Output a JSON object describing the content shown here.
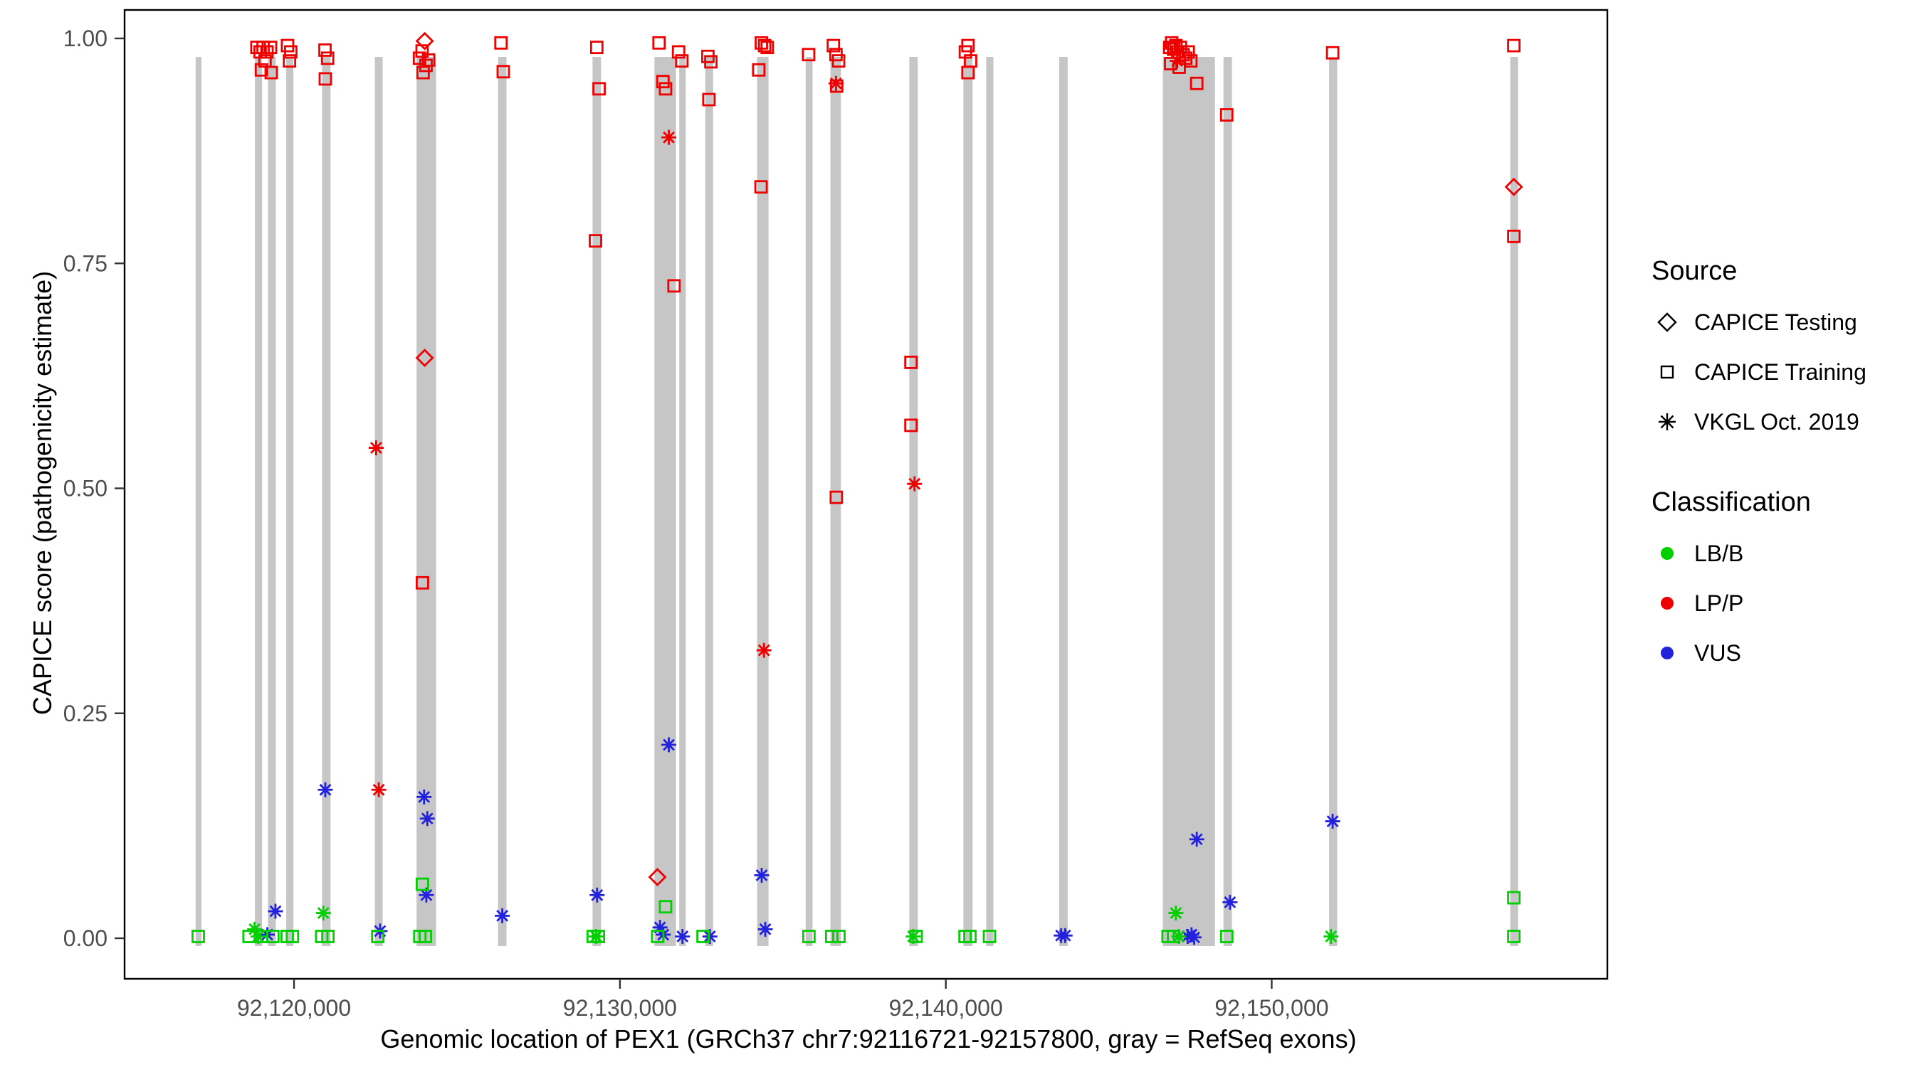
{
  "chart_data": {
    "type": "scatter",
    "title": "",
    "xlabel": "Genomic location of PEX1 (GRCh37 chr7:92116721-92157800, gray = RefSeq exons)",
    "ylabel": "CAPICE score (pathogenicity estimate)",
    "xlim": [
      92114800,
      92160300
    ],
    "ylim": [
      0,
      1
    ],
    "grid": false,
    "legend_position": "right",
    "x_ticks": [
      {
        "value": 92120000,
        "label": "92,120,000"
      },
      {
        "value": 92130000,
        "label": "92,130,000"
      },
      {
        "value": 92140000,
        "label": "92,140,000"
      },
      {
        "value": 92150000,
        "label": "92,150,000"
      }
    ],
    "y_ticks": [
      {
        "value": 0.0,
        "label": "0.00"
      },
      {
        "value": 0.25,
        "label": "0.25"
      },
      {
        "value": 0.5,
        "label": "0.50"
      },
      {
        "value": 0.75,
        "label": "0.75"
      },
      {
        "value": 1.0,
        "label": "1.00"
      }
    ],
    "exon_color": "#c6c6c6",
    "exons": [
      [
        92116980,
        92117160
      ],
      [
        92118800,
        92119020
      ],
      [
        92119200,
        92119440
      ],
      [
        92119760,
        92119980
      ],
      [
        92120860,
        92121120
      ],
      [
        92122480,
        92122720
      ],
      [
        92123760,
        92124360
      ],
      [
        92126260,
        92126520
      ],
      [
        92129160,
        92129420
      ],
      [
        92131060,
        92131720
      ],
      [
        92131820,
        92132020
      ],
      [
        92132620,
        92132860
      ],
      [
        92134210,
        92134560
      ],
      [
        92135700,
        92135910
      ],
      [
        92136460,
        92136780
      ],
      [
        92138880,
        92139140
      ],
      [
        92140540,
        92140820
      ],
      [
        92141240,
        92141460
      ],
      [
        92143480,
        92143740
      ],
      [
        92146660,
        92148260
      ],
      [
        92148520,
        92148780
      ],
      [
        92151760,
        92152010
      ],
      [
        92157320,
        92157560
      ]
    ],
    "shape_codes": {
      "d": "CAPICE Testing",
      "s": "CAPICE Training",
      "a": "VKGL Oct. 2019"
    },
    "class_codes": {
      "g": "LB/B",
      "r": "LP/P",
      "b": "VUS"
    },
    "classification_colors": {
      "LB/B": "#00d000",
      "LP/P": "#ee0000",
      "VUS": "#2222dd"
    },
    "points": [
      [
        92118860,
        0.99,
        "s",
        "r"
      ],
      [
        92118960,
        0.985,
        "s",
        "r"
      ],
      [
        92119050,
        0.99,
        "s",
        "r"
      ],
      [
        92119110,
        0.975,
        "s",
        "r"
      ],
      [
        92119170,
        0.985,
        "s",
        "r"
      ],
      [
        92119280,
        0.99,
        "s",
        "r"
      ],
      [
        92119000,
        0.965,
        "s",
        "r"
      ],
      [
        92119300,
        0.962,
        "s",
        "r"
      ],
      [
        92119800,
        0.992,
        "s",
        "r"
      ],
      [
        92119900,
        0.985,
        "s",
        "r"
      ],
      [
        92119860,
        0.975,
        "s",
        "r"
      ],
      [
        92120950,
        0.987,
        "s",
        "r"
      ],
      [
        92121030,
        0.978,
        "s",
        "r"
      ],
      [
        92120960,
        0.955,
        "s",
        "r"
      ],
      [
        92122520,
        0.545,
        "a",
        "r"
      ],
      [
        92122600,
        0.165,
        "a",
        "r"
      ],
      [
        92124010,
        0.997,
        "d",
        "r"
      ],
      [
        92123850,
        0.978,
        "s",
        "r"
      ],
      [
        92123930,
        0.986,
        "s",
        "r"
      ],
      [
        92124050,
        0.97,
        "s",
        "r"
      ],
      [
        92124130,
        0.976,
        "s",
        "r"
      ],
      [
        92123960,
        0.962,
        "s",
        "r"
      ],
      [
        92124010,
        0.645,
        "d",
        "r"
      ],
      [
        92123940,
        0.395,
        "s",
        "r"
      ],
      [
        92126350,
        0.995,
        "s",
        "r"
      ],
      [
        92126420,
        0.963,
        "s",
        "r"
      ],
      [
        92129290,
        0.99,
        "s",
        "r"
      ],
      [
        92129360,
        0.944,
        "s",
        "r"
      ],
      [
        92129250,
        0.775,
        "s",
        "r"
      ],
      [
        92131200,
        0.995,
        "s",
        "r"
      ],
      [
        92131320,
        0.952,
        "s",
        "r"
      ],
      [
        92131400,
        0.944,
        "s",
        "r"
      ],
      [
        92131500,
        0.89,
        "a",
        "r"
      ],
      [
        92131660,
        0.725,
        "s",
        "r"
      ],
      [
        92131150,
        0.068,
        "d",
        "r"
      ],
      [
        92131800,
        0.985,
        "s",
        "r"
      ],
      [
        92131900,
        0.975,
        "s",
        "r"
      ],
      [
        92132700,
        0.98,
        "s",
        "r"
      ],
      [
        92132790,
        0.974,
        "s",
        "r"
      ],
      [
        92132730,
        0.932,
        "s",
        "r"
      ],
      [
        92134260,
        0.965,
        "s",
        "r"
      ],
      [
        92134340,
        0.995,
        "s",
        "r"
      ],
      [
        92134440,
        0.992,
        "s",
        "r"
      ],
      [
        92134520,
        0.99,
        "s",
        "r"
      ],
      [
        92134330,
        0.835,
        "s",
        "r"
      ],
      [
        92134420,
        0.32,
        "a",
        "r"
      ],
      [
        92135790,
        0.982,
        "s",
        "r"
      ],
      [
        92136550,
        0.992,
        "s",
        "r"
      ],
      [
        92136630,
        0.982,
        "s",
        "r"
      ],
      [
        92136710,
        0.975,
        "s",
        "r"
      ],
      [
        92136630,
        0.95,
        "a",
        "r"
      ],
      [
        92136650,
        0.947,
        "s",
        "r"
      ],
      [
        92136640,
        0.49,
        "s",
        "r"
      ],
      [
        92138930,
        0.64,
        "s",
        "r"
      ],
      [
        92138930,
        0.57,
        "s",
        "r"
      ],
      [
        92139040,
        0.505,
        "a",
        "r"
      ],
      [
        92140600,
        0.985,
        "s",
        "r"
      ],
      [
        92140680,
        0.992,
        "s",
        "r"
      ],
      [
        92140760,
        0.975,
        "s",
        "r"
      ],
      [
        92140680,
        0.962,
        "s",
        "r"
      ],
      [
        92146870,
        0.99,
        "s",
        "r"
      ],
      [
        92146930,
        0.995,
        "s",
        "r"
      ],
      [
        92146990,
        0.988,
        "s",
        "r"
      ],
      [
        92147060,
        0.992,
        "s",
        "r"
      ],
      [
        92147120,
        0.985,
        "s",
        "r"
      ],
      [
        92147200,
        0.99,
        "s",
        "r"
      ],
      [
        92147280,
        0.982,
        "s",
        "r"
      ],
      [
        92147360,
        0.978,
        "s",
        "r"
      ],
      [
        92147440,
        0.985,
        "s",
        "r"
      ],
      [
        92146900,
        0.972,
        "s",
        "r"
      ],
      [
        92147160,
        0.968,
        "s",
        "r"
      ],
      [
        92147520,
        0.975,
        "s",
        "r"
      ],
      [
        92147100,
        0.975,
        "a",
        "r"
      ],
      [
        92147700,
        0.95,
        "s",
        "r"
      ],
      [
        92148620,
        0.915,
        "s",
        "r"
      ],
      [
        92151870,
        0.984,
        "s",
        "r"
      ],
      [
        92157430,
        0.992,
        "s",
        "r"
      ],
      [
        92157430,
        0.835,
        "d",
        "r"
      ],
      [
        92157430,
        0.78,
        "s",
        "r"
      ],
      [
        92119430,
        0.03,
        "a",
        "b"
      ],
      [
        92119180,
        0.004,
        "a",
        "b"
      ],
      [
        92120960,
        0.165,
        "a",
        "b"
      ],
      [
        92123990,
        0.157,
        "a",
        "b"
      ],
      [
        92124090,
        0.133,
        "a",
        "b"
      ],
      [
        92124060,
        0.048,
        "a",
        "b"
      ],
      [
        92122640,
        0.008,
        "a",
        "b"
      ],
      [
        92126390,
        0.025,
        "a",
        "b"
      ],
      [
        92129300,
        0.048,
        "a",
        "b"
      ],
      [
        92131230,
        0.012,
        "a",
        "b"
      ],
      [
        92131330,
        0.004,
        "a",
        "b"
      ],
      [
        92131500,
        0.215,
        "a",
        "b"
      ],
      [
        92131920,
        0.002,
        "a",
        "b"
      ],
      [
        92132760,
        0.002,
        "a",
        "b"
      ],
      [
        92134350,
        0.07,
        "a",
        "b"
      ],
      [
        92134460,
        0.01,
        "a",
        "b"
      ],
      [
        92143540,
        0.003,
        "a",
        "b"
      ],
      [
        92143660,
        0.003,
        "a",
        "b"
      ],
      [
        92147700,
        0.11,
        "a",
        "b"
      ],
      [
        92147420,
        0.002,
        "a",
        "b"
      ],
      [
        92147540,
        0.004,
        "a",
        "b"
      ],
      [
        92147620,
        0.001,
        "a",
        "b"
      ],
      [
        92148720,
        0.04,
        "a",
        "b"
      ],
      [
        92151870,
        0.13,
        "a",
        "b"
      ],
      [
        92117060,
        0.002,
        "s",
        "g"
      ],
      [
        92118620,
        0.002,
        "s",
        "g"
      ],
      [
        92118790,
        0.01,
        "a",
        "g"
      ],
      [
        92118900,
        0.002,
        "a",
        "g"
      ],
      [
        92119010,
        0.002,
        "s",
        "g"
      ],
      [
        92119350,
        0.002,
        "s",
        "g"
      ],
      [
        92119790,
        0.002,
        "s",
        "g"
      ],
      [
        92119950,
        0.002,
        "s",
        "g"
      ],
      [
        92120900,
        0.028,
        "a",
        "g"
      ],
      [
        92120850,
        0.002,
        "s",
        "g"
      ],
      [
        92121040,
        0.002,
        "s",
        "g"
      ],
      [
        92122570,
        0.002,
        "s",
        "g"
      ],
      [
        92123940,
        0.06,
        "s",
        "g"
      ],
      [
        92123860,
        0.002,
        "s",
        "g"
      ],
      [
        92124030,
        0.002,
        "s",
        "g"
      ],
      [
        92129180,
        0.002,
        "s",
        "g"
      ],
      [
        92129270,
        0.002,
        "a",
        "g"
      ],
      [
        92129340,
        0.002,
        "s",
        "g"
      ],
      [
        92131400,
        0.035,
        "s",
        "g"
      ],
      [
        92131160,
        0.002,
        "s",
        "g"
      ],
      [
        92132550,
        0.002,
        "s",
        "g"
      ],
      [
        92135800,
        0.002,
        "s",
        "g"
      ],
      [
        92136500,
        0.002,
        "s",
        "g"
      ],
      [
        92136720,
        0.002,
        "s",
        "g"
      ],
      [
        92139000,
        0.002,
        "a",
        "g"
      ],
      [
        92139090,
        0.002,
        "s",
        "g"
      ],
      [
        92140590,
        0.002,
        "s",
        "g"
      ],
      [
        92140740,
        0.002,
        "s",
        "g"
      ],
      [
        92141340,
        0.002,
        "s",
        "g"
      ],
      [
        92147060,
        0.028,
        "a",
        "g"
      ],
      [
        92146820,
        0.002,
        "s",
        "g"
      ],
      [
        92146990,
        0.002,
        "s",
        "g"
      ],
      [
        92147150,
        0.002,
        "a",
        "g"
      ],
      [
        92148620,
        0.002,
        "s",
        "g"
      ],
      [
        92151820,
        0.002,
        "a",
        "g"
      ],
      [
        92157430,
        0.045,
        "s",
        "g"
      ],
      [
        92157430,
        0.002,
        "s",
        "g"
      ]
    ]
  },
  "legend": {
    "source": {
      "title": "Source",
      "items": [
        {
          "label": "CAPICE Testing",
          "shape": "diamond"
        },
        {
          "label": "CAPICE Training",
          "shape": "square"
        },
        {
          "label": "VKGL Oct. 2019",
          "shape": "asterisk"
        }
      ]
    },
    "classification": {
      "title": "Classification",
      "items": [
        {
          "label": "LB/B",
          "color_key": "LB/B"
        },
        {
          "label": "LP/P",
          "color_key": "LP/P"
        },
        {
          "label": "VUS",
          "color_key": "VUS"
        }
      ]
    }
  }
}
